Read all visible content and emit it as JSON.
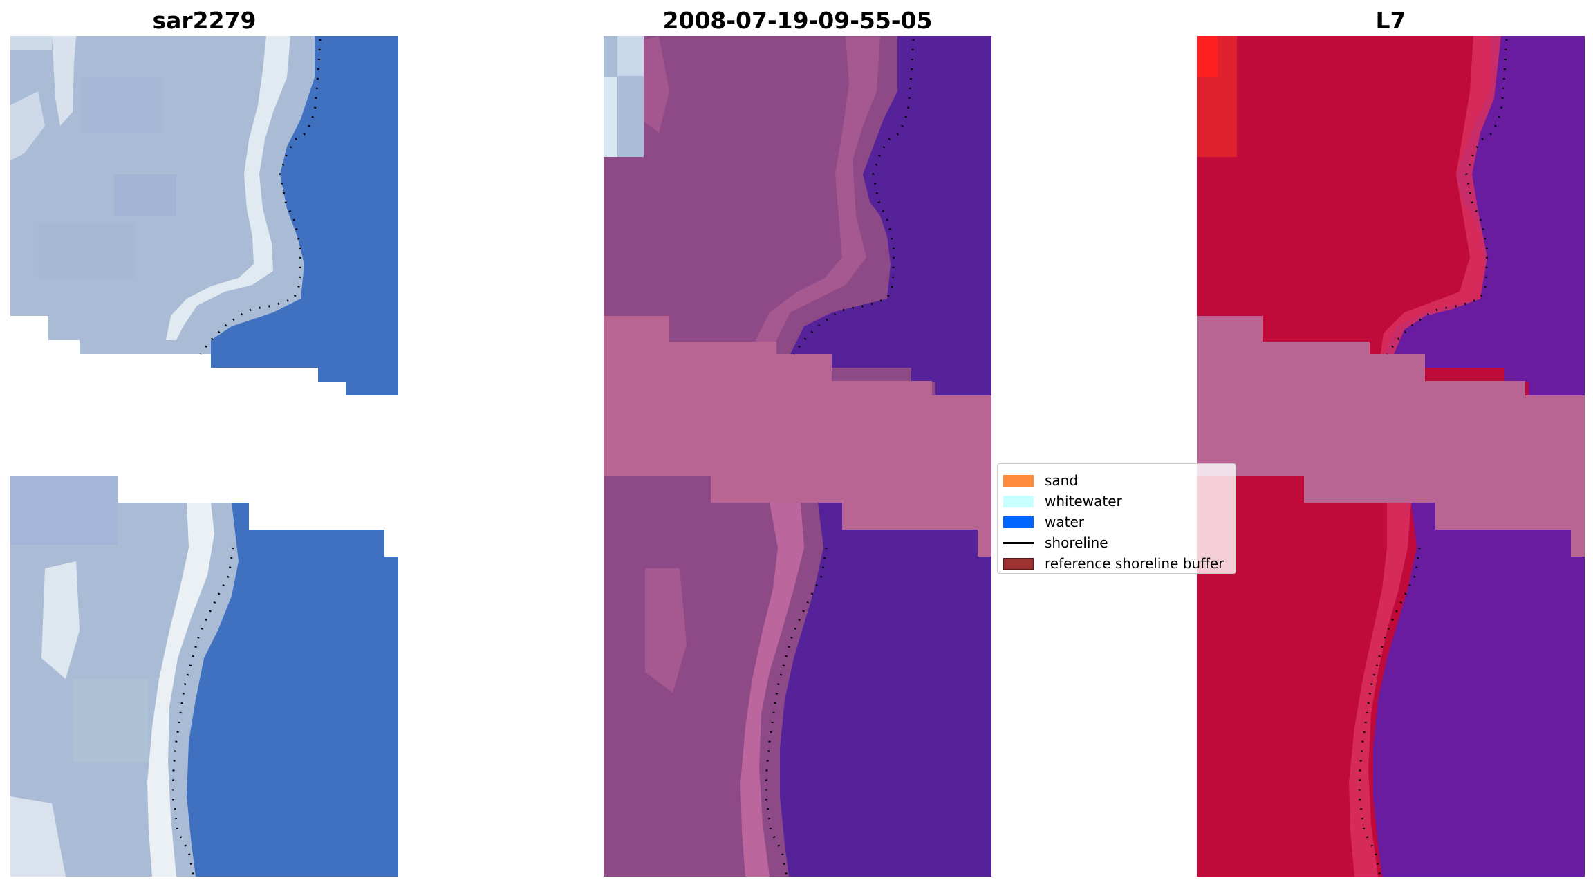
{
  "panels": [
    {
      "title": "sar2279"
    },
    {
      "title": "2008-07-19-09-55-05"
    },
    {
      "title": "L7"
    }
  ],
  "legend": {
    "items": [
      {
        "label": "sand",
        "color": "#ff8c3c",
        "kind": "patch"
      },
      {
        "label": "whitewater",
        "color": "#c8ffff",
        "kind": "patch"
      },
      {
        "label": "water",
        "color": "#0064ff",
        "kind": "patch"
      },
      {
        "label": "shoreline",
        "color": "#000000",
        "kind": "line"
      },
      {
        "label": "reference shoreline buffer",
        "color": "#9c3232",
        "kind": "patch"
      }
    ]
  },
  "colors": {
    "rgb_land": "#aabbd6",
    "rgb_whitewater": "#e8f0f4",
    "rgb_water": "#4070c0",
    "class_land": "#8e4a86",
    "class_land_light": "#c06aa0",
    "class_water": "#55229a",
    "class_nodata_band": "#b96594",
    "swir_land": "#c00a3a",
    "swir_water": "#6a1ca0",
    "swir_edge": "#d83060",
    "swir_bright": "#ff2020"
  }
}
